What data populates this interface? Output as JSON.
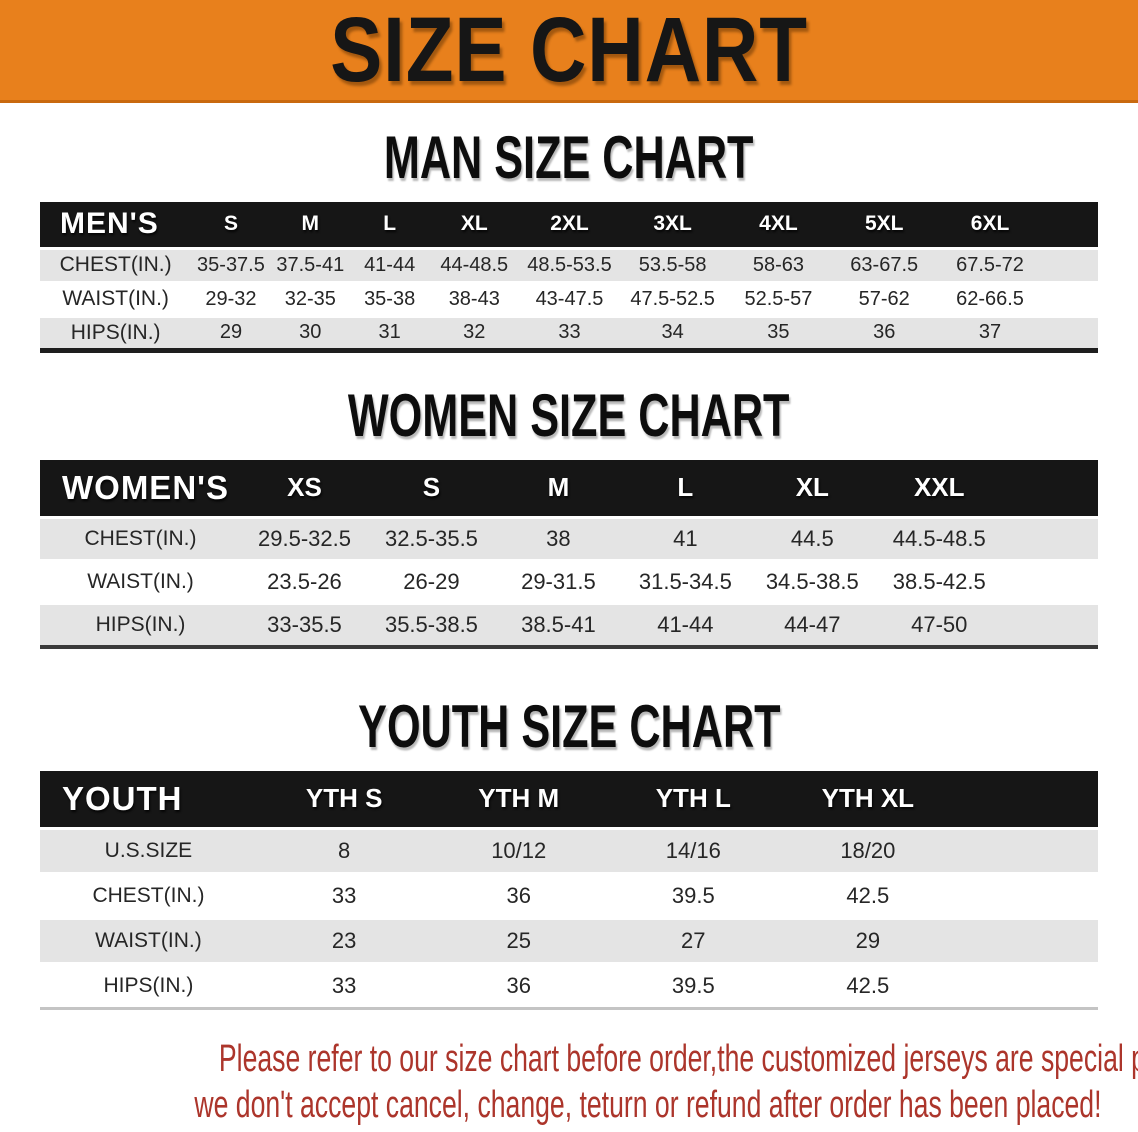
{
  "banner": {
    "title": "SIZE CHART"
  },
  "colors": {
    "accent_orange": "#E8801C",
    "header_black": "#161616",
    "row_gray": "#E4E4E4",
    "disclaimer_red": "#AC352B"
  },
  "sections": [
    {
      "id": "men",
      "heading": "MAN SIZE CHART",
      "table": {
        "corner_label": "MEN'S",
        "columns": [
          "S",
          "M",
          "L",
          "XL",
          "2XL",
          "3XL",
          "4XL",
          "5XL",
          "6XL"
        ],
        "rows": [
          {
            "label": "CHEST(IN.)",
            "values": [
              "35-37.5",
              "37.5-41",
              "41-44",
              "44-48.5",
              "48.5-53.5",
              "53.5-58",
              "58-63",
              "63-67.5",
              "67.5-72"
            ]
          },
          {
            "label": "WAIST(IN.)",
            "values": [
              "29-32",
              "32-35",
              "35-38",
              "38-43",
              "43-47.5",
              "47.5-52.5",
              "52.5-57",
              "57-62",
              "62-66.5"
            ]
          },
          {
            "label": "HIPS(IN.)",
            "values": [
              "29",
              "30",
              "31",
              "32",
              "33",
              "34",
              "35",
              "36",
              "37"
            ]
          }
        ]
      }
    },
    {
      "id": "women",
      "heading": "WOMEN SIZE CHART",
      "table": {
        "corner_label": "WOMEN'S",
        "columns": [
          "XS",
          "S",
          "M",
          "L",
          "XL",
          "XXL"
        ],
        "rows": [
          {
            "label": "CHEST(IN.)",
            "values": [
              "29.5-32.5",
              "32.5-35.5",
              "38",
              "41",
              "44.5",
              "44.5-48.5"
            ]
          },
          {
            "label": "WAIST(IN.)",
            "values": [
              "23.5-26",
              "26-29",
              "29-31.5",
              "31.5-34.5",
              "34.5-38.5",
              "38.5-42.5"
            ]
          },
          {
            "label": "HIPS(IN.)",
            "values": [
              "33-35.5",
              "35.5-38.5",
              "38.5-41",
              "41-44",
              "44-47",
              "47-50"
            ]
          }
        ]
      }
    },
    {
      "id": "youth",
      "heading": "YOUTH SIZE CHART",
      "table": {
        "corner_label": "YOUTH",
        "columns": [
          "YTH S",
          "YTH M",
          "YTH L",
          "YTH XL"
        ],
        "rows": [
          {
            "label": "U.S.SIZE",
            "values": [
              "8",
              "10/12",
              "14/16",
              "18/20"
            ]
          },
          {
            "label": "CHEST(IN.)",
            "values": [
              "33",
              "36",
              "39.5",
              "42.5"
            ]
          },
          {
            "label": "WAIST(IN.)",
            "values": [
              "23",
              "25",
              "27",
              "29"
            ]
          },
          {
            "label": "HIPS(IN.)",
            "values": [
              "33",
              "36",
              "39.5",
              "42.5"
            ]
          }
        ]
      }
    }
  ],
  "disclaimer": {
    "line1": "Please refer to our size chart before order,the customized jerseys are special products,",
    "line2": "we don't accept cancel, change, teturn or refund after order has been placed!"
  }
}
